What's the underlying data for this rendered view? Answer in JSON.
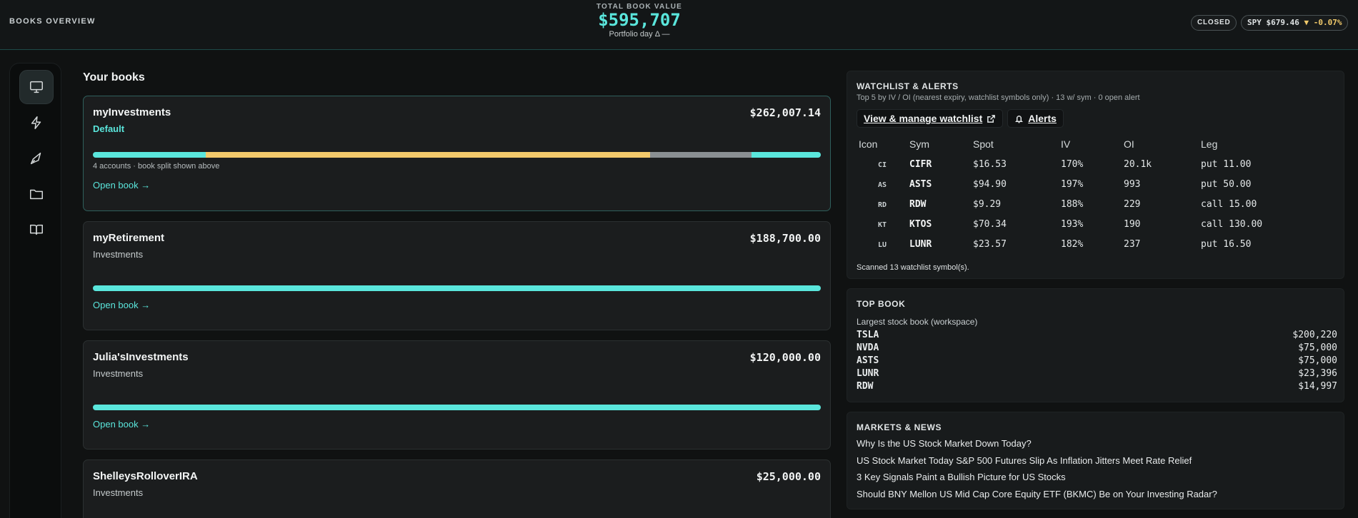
{
  "header": {
    "title": "BOOKS OVERVIEW",
    "total_label": "TOTAL BOOK VALUE",
    "total_value": "$595,707",
    "day_delta": "Portfolio day Δ —",
    "market_status": "CLOSED",
    "spy_label": "SPY $679.46",
    "spy_change": "▼ -0.07%",
    "accent_color": "#5ae6dc"
  },
  "sidebar": {
    "items": [
      {
        "icon": "monitor-icon",
        "active": true
      },
      {
        "icon": "lightning-icon",
        "active": false
      },
      {
        "icon": "rocket-icon",
        "active": false
      },
      {
        "icon": "folder-icon",
        "active": false
      },
      {
        "icon": "book-icon",
        "active": false
      }
    ]
  },
  "books_section": {
    "title": "Your books",
    "books": [
      {
        "name": "myInvestments",
        "subtitle": "Default",
        "value": "$262,007.14",
        "split_fractions": [
          0.155,
          0.61,
          0.14,
          0.095
        ],
        "split_colors": [
          "#5ae6dc",
          "#f2c96b",
          "#8a8f92",
          "#5ae6dc"
        ],
        "note": "4 accounts · book split shown above",
        "open_label": "Open book →"
      },
      {
        "name": "myRetirement",
        "subtitle": "Investments",
        "value": "$188,700.00",
        "open_label": "Open book →"
      },
      {
        "name": "Julia'sInvestments",
        "subtitle": "Investments",
        "value": "$120,000.00",
        "open_label": "Open book →"
      },
      {
        "name": "ShelleysRolloverIRA",
        "subtitle": "Investments",
        "value": "$25,000.00"
      }
    ]
  },
  "watchlist": {
    "title": "WATCHLIST & ALERTS",
    "subtitle": "Top 5 by IV / OI (nearest expiry, watchlist symbols only) · 13 w/ sym · 0 open alert",
    "manage_label": "View & manage watchlist",
    "alerts_label": "Alerts",
    "columns": [
      "Icon",
      "Sym",
      "Spot",
      "IV",
      "OI",
      "Leg"
    ],
    "rows": [
      {
        "icon": "CI",
        "sym": "CIFR",
        "spot": "$16.53",
        "iv": "170%",
        "oi": "20.1k",
        "leg": "put 11.00"
      },
      {
        "icon": "AS",
        "sym": "ASTS",
        "spot": "$94.90",
        "iv": "197%",
        "oi": "993",
        "leg": "put 50.00"
      },
      {
        "icon": "RD",
        "sym": "RDW",
        "spot": "$9.29",
        "iv": "188%",
        "oi": "229",
        "leg": "call 15.00"
      },
      {
        "icon": "KT",
        "sym": "KTOS",
        "spot": "$70.34",
        "iv": "193%",
        "oi": "190",
        "leg": "call 130.00"
      },
      {
        "icon": "LU",
        "sym": "LUNR",
        "spot": "$23.57",
        "iv": "182%",
        "oi": "237",
        "leg": "put 16.50"
      }
    ],
    "scanned": "Scanned 13 watchlist symbol(s)."
  },
  "top_book": {
    "title": "TOP BOOK",
    "subtitle": "Largest stock book (workspace)",
    "rows": [
      {
        "ticker": "TSLA",
        "value": "$200,220"
      },
      {
        "ticker": "NVDA",
        "value": "$75,000"
      },
      {
        "ticker": "ASTS",
        "value": "$75,000"
      },
      {
        "ticker": "LUNR",
        "value": "$23,396"
      },
      {
        "ticker": "RDW",
        "value": "$14,997"
      }
    ]
  },
  "news": {
    "title": "MARKETS & NEWS",
    "items": [
      "Why Is the US Stock Market Down Today?",
      "US Stock Market Today S&P 500 Futures Slip As Inflation Jitters Meet Rate Relief",
      "3 Key Signals Paint a Bullish Picture for US Stocks",
      "Should BNY Mellon US Mid Cap Core Equity ETF (BKMC) Be on Your Investing Radar?"
    ]
  }
}
